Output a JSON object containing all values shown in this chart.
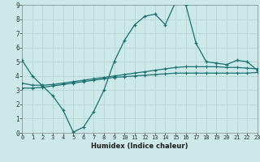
{
  "xlabel": "Humidex (Indice chaleur)",
  "xlim": [
    0,
    23
  ],
  "ylim": [
    0,
    9
  ],
  "xticks": [
    0,
    1,
    2,
    3,
    4,
    5,
    6,
    7,
    8,
    9,
    10,
    11,
    12,
    13,
    14,
    15,
    16,
    17,
    18,
    19,
    20,
    21,
    22,
    23
  ],
  "yticks": [
    0,
    1,
    2,
    3,
    4,
    5,
    6,
    7,
    8,
    9
  ],
  "bg_color": "#cce8e8",
  "grid_color": "#b8d8d8",
  "line_color": "#1a7070",
  "line1_x": [
    0,
    1,
    2,
    3,
    4,
    5,
    6,
    7,
    8,
    9,
    10,
    11,
    12,
    13,
    14,
    15,
    16,
    17,
    18,
    19,
    20,
    21,
    22,
    23
  ],
  "line1_y": [
    5.1,
    4.0,
    3.3,
    2.6,
    1.6,
    0.05,
    0.4,
    1.5,
    3.0,
    5.0,
    6.5,
    7.6,
    8.2,
    8.35,
    7.6,
    9.2,
    9.0,
    6.3,
    5.0,
    4.9,
    4.8,
    5.1,
    5.0,
    4.4
  ],
  "line2_x": [
    0,
    1,
    2,
    3,
    4,
    5,
    6,
    7,
    8,
    9,
    10,
    11,
    12,
    13,
    14,
    15,
    16,
    17,
    18,
    19,
    20,
    21,
    22,
    23
  ],
  "line2_y": [
    3.5,
    3.35,
    3.35,
    3.4,
    3.5,
    3.6,
    3.7,
    3.8,
    3.9,
    4.0,
    4.1,
    4.2,
    4.3,
    4.4,
    4.5,
    4.6,
    4.65,
    4.65,
    4.65,
    4.65,
    4.6,
    4.6,
    4.55,
    4.5
  ],
  "line3_x": [
    0,
    1,
    2,
    3,
    4,
    5,
    6,
    7,
    8,
    9,
    10,
    11,
    12,
    13,
    14,
    15,
    16,
    17,
    18,
    19,
    20,
    21,
    22,
    23
  ],
  "line3_y": [
    3.15,
    3.15,
    3.2,
    3.3,
    3.4,
    3.5,
    3.6,
    3.7,
    3.8,
    3.9,
    3.95,
    4.0,
    4.05,
    4.1,
    4.15,
    4.2,
    4.2,
    4.2,
    4.2,
    4.2,
    4.2,
    4.2,
    4.2,
    4.25
  ]
}
